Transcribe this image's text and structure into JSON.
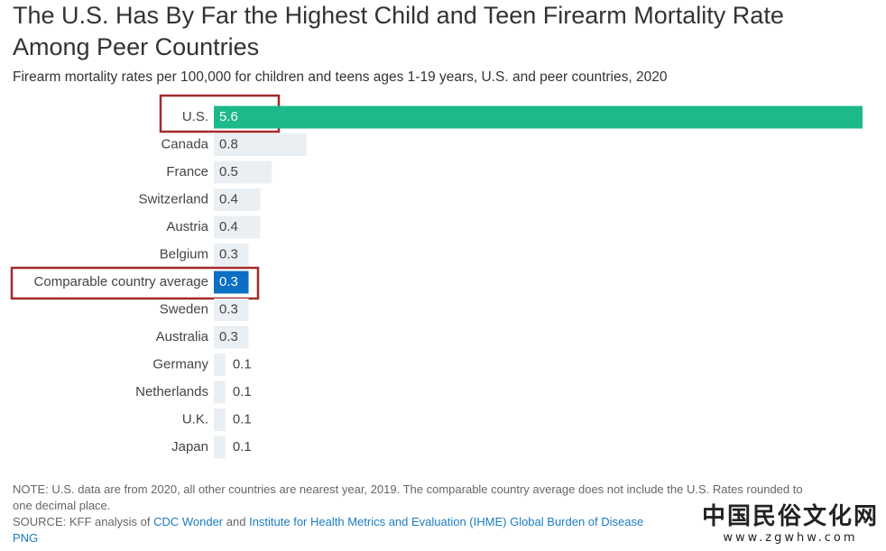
{
  "chart_data": {
    "type": "bar",
    "title": "The U.S. Has By Far the Highest Child and Teen Firearm Mortality Rate Among Peer Countries",
    "subtitle": "Firearm mortality rates per 100,000 for children and teens ages 1-19 years, U.S. and peer countries, 2020",
    "categories": [
      "U.S.",
      "Canada",
      "France",
      "Switzerland",
      "Austria",
      "Belgium",
      "Comparable country average",
      "Sweden",
      "Australia",
      "Germany",
      "Netherlands",
      "U.K.",
      "Japan"
    ],
    "values": [
      5.6,
      0.8,
      0.5,
      0.4,
      0.4,
      0.3,
      0.3,
      0.3,
      0.3,
      0.1,
      0.1,
      0.1,
      0.1
    ],
    "colors": [
      "#1cb98a",
      "#e9eff3",
      "#e9eff3",
      "#e9eff3",
      "#e9eff3",
      "#e9eff3",
      "#0b6fc4",
      "#e9eff3",
      "#e9eff3",
      "#e9eff3",
      "#e9eff3",
      "#e9eff3",
      "#e9eff3"
    ],
    "note": "NOTE: U.S. data are from 2020, all other countries are nearest year, 2019. The comparable country average does not include the U.S. Rates rounded to one decimal place.",
    "source_prefix": "SOURCE: KFF analysis of",
    "source_link_1": "CDC Wonder",
    "source_and": "and",
    "source_link_2": "Institute for Health Metrics and Evaluation (IHME) Global Burden of Disease",
    "source_suffix": "PNG",
    "watermark": "中国民俗文化网",
    "watermark_url": "www.zgwhw.com"
  }
}
